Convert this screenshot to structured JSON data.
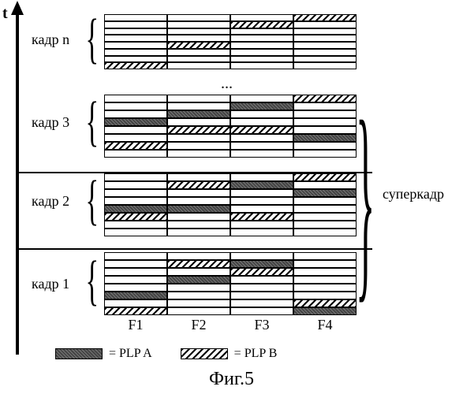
{
  "axis_label": "t",
  "frames": [
    {
      "label": "кадр 1",
      "rows": 8,
      "plpa": {
        "0": 2,
        "1": 4,
        "2": 6,
        "3": 0
      },
      "plpb": {
        "0": 0,
        "1": 6,
        "2": 5,
        "3": 1
      }
    },
    {
      "label": "кадр 2",
      "rows": 8,
      "plpa": {
        "0": 3,
        "1": 3,
        "2": 6,
        "3": 5
      },
      "plpb": {
        "0": 2,
        "1": 6,
        "2": 2,
        "3": 7
      }
    },
    {
      "label": "кадр 3",
      "rows": 8,
      "plpa": {
        "0": 4,
        "1": 5,
        "2": 6,
        "3": 2
      },
      "plpb": {
        "0": 1,
        "1": 3,
        "2": 3,
        "3": 7
      }
    },
    {
      "label": "кадр n",
      "rows": 8,
      "plpa": {},
      "plpb": {
        "0": 0,
        "1": 3,
        "2": 6,
        "3": 7
      }
    }
  ],
  "ellipsis": "...",
  "xlabels": [
    "F1",
    "F2",
    "F3",
    "F4"
  ],
  "super_label": "суперкадр",
  "legend": {
    "a": "= PLP A",
    "b": "= PLP B"
  },
  "figure_label": "Фиг.5",
  "colors": {
    "border": "#000000"
  }
}
